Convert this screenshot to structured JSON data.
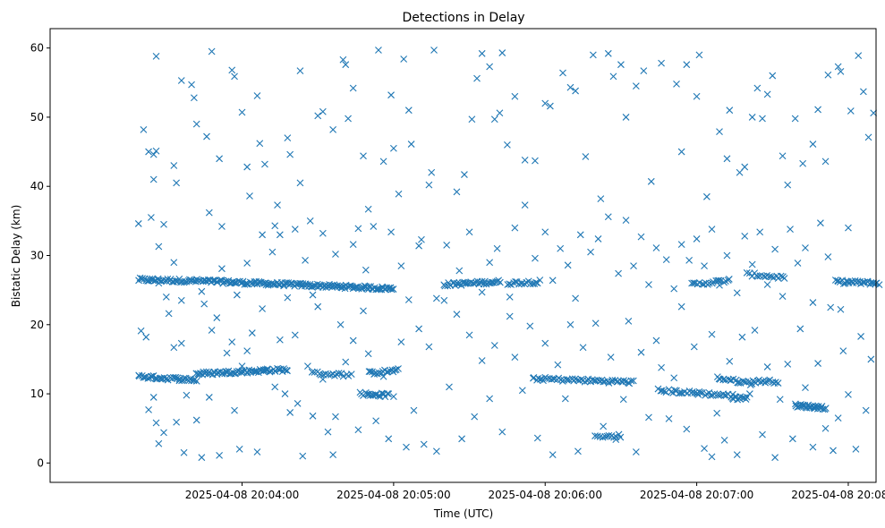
{
  "chart_data": {
    "type": "scatter",
    "title": "Detections in Delay",
    "xlabel": "Time (UTC)",
    "ylabel": "Bistatic Delay (km)",
    "marker": "x",
    "color": "#1f77b4",
    "x_unit": "seconds since 2025-04-08 20:03:00",
    "xlim": [
      -16,
      311
    ],
    "ylim": [
      -2.8,
      62.8
    ],
    "xticks": [
      {
        "value": 60,
        "label": "2025-04-08 20:04:00"
      },
      {
        "value": 120,
        "label": "2025-04-08 20:05:00"
      },
      {
        "value": 180,
        "label": "2025-04-08 20:06:00"
      },
      {
        "value": 240,
        "label": "2025-04-08 20:07:00"
      },
      {
        "value": 300,
        "label": "2025-04-08 20:08:00"
      }
    ],
    "yticks": [
      0,
      10,
      20,
      30,
      40,
      50,
      60
    ],
    "tracks": [
      {
        "name": "track-upper-1",
        "x_start": 19,
        "x_end": 45,
        "y_start": 26.5,
        "y_end": 26.3,
        "count": 46
      },
      {
        "name": "track-upper-2",
        "x_start": 45,
        "x_end": 120,
        "y_start": 26.3,
        "y_end": 25.2,
        "count": 150
      },
      {
        "name": "track-upper-3",
        "x_start": 140,
        "x_end": 162,
        "y_start": 25.8,
        "y_end": 26.2,
        "count": 40
      },
      {
        "name": "track-upper-4",
        "x_start": 165,
        "x_end": 178,
        "y_start": 26.0,
        "y_end": 26.2,
        "count": 18
      },
      {
        "name": "track-upper-5",
        "x_start": 238,
        "x_end": 253,
        "y_start": 25.8,
        "y_end": 26.4,
        "count": 20
      },
      {
        "name": "track-upper-6",
        "x_start": 260,
        "x_end": 275,
        "y_start": 27.3,
        "y_end": 26.8,
        "count": 18
      },
      {
        "name": "track-upper-7",
        "x_start": 295,
        "x_end": 312,
        "y_start": 26.2,
        "y_end": 26.0,
        "count": 30
      },
      {
        "name": "track-lower-1",
        "x_start": 19,
        "x_end": 42,
        "y_start": 12.5,
        "y_end": 12.0,
        "count": 40
      },
      {
        "name": "track-lower-2",
        "x_start": 42,
        "x_end": 78,
        "y_start": 12.9,
        "y_end": 13.5,
        "count": 70
      },
      {
        "name": "track-lower-3",
        "x_start": 88,
        "x_end": 103,
        "y_start": 13.0,
        "y_end": 12.7,
        "count": 18
      },
      {
        "name": "track-lower-4",
        "x_start": 110,
        "x_end": 122,
        "y_start": 13.0,
        "y_end": 13.4,
        "count": 18
      },
      {
        "name": "track-lower-5",
        "x_start": 175,
        "x_end": 215,
        "y_start": 12.2,
        "y_end": 11.7,
        "count": 55
      },
      {
        "name": "track-lower-6",
        "x_start": 225,
        "x_end": 240,
        "y_start": 10.5,
        "y_end": 10.1,
        "count": 20
      },
      {
        "name": "track-lower-7",
        "x_start": 240,
        "x_end": 255,
        "y_start": 10.1,
        "y_end": 9.7,
        "count": 20
      },
      {
        "name": "track-lower-8",
        "x_start": 248,
        "x_end": 262,
        "y_start": 12.3,
        "y_end": 11.5,
        "count": 20
      },
      {
        "name": "track-lower-9",
        "x_start": 262,
        "x_end": 272,
        "y_start": 11.8,
        "y_end": 11.8,
        "count": 15
      },
      {
        "name": "track-lower-10",
        "x_start": 279,
        "x_end": 291,
        "y_start": 8.3,
        "y_end": 8.0,
        "count": 30
      },
      {
        "name": "track-lower-11",
        "x_start": 107,
        "x_end": 118,
        "y_start": 10.0,
        "y_end": 9.8,
        "count": 20
      },
      {
        "name": "track-lower-12",
        "x_start": 254,
        "x_end": 260,
        "y_start": 9.4,
        "y_end": 9.3,
        "count": 10
      },
      {
        "name": "track-lower-13",
        "x_start": 200,
        "x_end": 210,
        "y_start": 3.9,
        "y_end": 3.9,
        "count": 12
      }
    ],
    "scatter_points": [
      [
        19,
        34.6
      ],
      [
        21,
        48.2
      ],
      [
        23,
        45.0
      ],
      [
        24,
        35.5
      ],
      [
        25,
        44.6
      ],
      [
        26,
        45.1
      ],
      [
        27,
        26.0
      ],
      [
        25,
        41.0
      ],
      [
        26,
        58.8
      ],
      [
        29,
        34.5
      ],
      [
        27,
        31.3
      ],
      [
        33,
        43.0
      ],
      [
        34,
        40.5
      ],
      [
        36,
        55.3
      ],
      [
        40,
        54.7
      ],
      [
        41,
        52.8
      ],
      [
        42,
        49.0
      ],
      [
        46,
        47.2
      ],
      [
        47,
        36.2
      ],
      [
        48,
        59.5
      ],
      [
        51,
        44.0
      ],
      [
        52,
        34.2
      ],
      [
        56,
        56.8
      ],
      [
        57,
        55.9
      ],
      [
        60,
        50.7
      ],
      [
        62,
        42.8
      ],
      [
        63,
        38.6
      ],
      [
        66,
        53.1
      ],
      [
        67,
        46.2
      ],
      [
        69,
        43.2
      ],
      [
        73,
        34.3
      ],
      [
        74,
        37.3
      ],
      [
        78,
        47.0
      ],
      [
        79,
        44.6
      ],
      [
        81,
        33.8
      ],
      [
        83,
        56.7
      ],
      [
        83,
        40.5
      ],
      [
        87,
        35.0
      ],
      [
        90,
        50.2
      ],
      [
        92,
        50.8
      ],
      [
        96,
        48.2
      ],
      [
        100,
        58.3
      ],
      [
        101,
        57.6
      ],
      [
        102,
        49.8
      ],
      [
        104,
        54.2
      ],
      [
        106,
        33.9
      ],
      [
        108,
        44.4
      ],
      [
        110,
        36.7
      ],
      [
        114,
        59.7
      ],
      [
        116,
        43.6
      ],
      [
        119,
        53.2
      ],
      [
        120,
        45.5
      ],
      [
        122,
        38.9
      ],
      [
        124,
        58.4
      ],
      [
        126,
        51.0
      ],
      [
        127,
        46.1
      ],
      [
        130,
        31.4
      ],
      [
        134,
        40.2
      ],
      [
        136,
        59.7
      ],
      [
        135,
        42.0
      ],
      [
        145,
        39.2
      ],
      [
        148,
        41.7
      ],
      [
        151,
        49.7
      ],
      [
        153,
        55.6
      ],
      [
        155,
        59.2
      ],
      [
        158,
        57.3
      ],
      [
        160,
        49.7
      ],
      [
        163,
        59.3
      ],
      [
        162,
        50.6
      ],
      [
        165,
        46.0
      ],
      [
        168,
        53.0
      ],
      [
        172,
        43.8
      ],
      [
        176,
        43.7
      ],
      [
        180,
        52.0
      ],
      [
        182,
        51.6
      ],
      [
        187,
        56.4
      ],
      [
        190,
        54.3
      ],
      [
        192,
        53.8
      ],
      [
        196,
        44.3
      ],
      [
        199,
        59.0
      ],
      [
        202,
        38.2
      ],
      [
        205,
        59.2
      ],
      [
        207,
        55.9
      ],
      [
        210,
        57.6
      ],
      [
        212,
        50.0
      ],
      [
        216,
        54.5
      ],
      [
        219,
        56.7
      ],
      [
        222,
        40.7
      ],
      [
        226,
        57.8
      ],
      [
        232,
        54.8
      ],
      [
        234,
        45.0
      ],
      [
        236,
        57.6
      ],
      [
        240,
        53.0
      ],
      [
        241,
        59.0
      ],
      [
        244,
        38.5
      ],
      [
        249,
        47.9
      ],
      [
        253,
        51.0
      ],
      [
        252,
        44.0
      ],
      [
        257,
        42.0
      ],
      [
        259,
        42.8
      ],
      [
        262,
        50.0
      ],
      [
        264,
        54.2
      ],
      [
        266,
        49.8
      ],
      [
        268,
        53.3
      ],
      [
        270,
        56.0
      ],
      [
        274,
        44.4
      ],
      [
        276,
        40.2
      ],
      [
        279,
        49.8
      ],
      [
        282,
        43.3
      ],
      [
        286,
        46.1
      ],
      [
        288,
        51.1
      ],
      [
        291,
        43.6
      ],
      [
        292,
        56.1
      ],
      [
        296,
        57.3
      ],
      [
        297,
        56.6
      ],
      [
        301,
        50.9
      ],
      [
        304,
        58.9
      ],
      [
        306,
        53.7
      ],
      [
        308,
        47.1
      ],
      [
        310,
        50.6
      ],
      [
        20,
        19.1
      ],
      [
        22,
        18.2
      ],
      [
        23,
        7.7
      ],
      [
        25,
        9.5
      ],
      [
        26,
        5.8
      ],
      [
        27,
        2.8
      ],
      [
        29,
        4.4
      ],
      [
        31,
        21.6
      ],
      [
        33,
        16.7
      ],
      [
        34,
        5.9
      ],
      [
        36,
        17.3
      ],
      [
        37,
        1.5
      ],
      [
        38,
        9.8
      ],
      [
        41,
        12.0
      ],
      [
        42,
        6.2
      ],
      [
        44,
        0.8
      ],
      [
        45,
        23.0
      ],
      [
        47,
        9.5
      ],
      [
        48,
        19.2
      ],
      [
        50,
        21.0
      ],
      [
        51,
        1.1
      ],
      [
        54,
        15.9
      ],
      [
        56,
        17.5
      ],
      [
        57,
        7.6
      ],
      [
        59,
        2.0
      ],
      [
        60,
        14.0
      ],
      [
        62,
        16.2
      ],
      [
        64,
        18.8
      ],
      [
        66,
        1.6
      ],
      [
        68,
        22.3
      ],
      [
        70,
        13.6
      ],
      [
        73,
        11.0
      ],
      [
        75,
        17.8
      ],
      [
        77,
        10.0
      ],
      [
        79,
        7.3
      ],
      [
        81,
        18.5
      ],
      [
        82,
        8.6
      ],
      [
        84,
        1.0
      ],
      [
        86,
        14.0
      ],
      [
        88,
        6.8
      ],
      [
        90,
        22.6
      ],
      [
        92,
        12.1
      ],
      [
        94,
        4.5
      ],
      [
        96,
        1.2
      ],
      [
        97,
        6.7
      ],
      [
        99,
        20.0
      ],
      [
        101,
        14.6
      ],
      [
        104,
        17.7
      ],
      [
        106,
        4.8
      ],
      [
        108,
        22.0
      ],
      [
        110,
        15.8
      ],
      [
        113,
        6.1
      ],
      [
        116,
        12.5
      ],
      [
        118,
        3.5
      ],
      [
        120,
        9.6
      ],
      [
        123,
        17.5
      ],
      [
        125,
        2.3
      ],
      [
        128,
        7.6
      ],
      [
        130,
        19.4
      ],
      [
        132,
        2.7
      ],
      [
        134,
        16.8
      ],
      [
        137,
        1.7
      ],
      [
        140,
        23.5
      ],
      [
        142,
        11.0
      ],
      [
        145,
        21.5
      ],
      [
        147,
        3.5
      ],
      [
        150,
        18.5
      ],
      [
        152,
        6.7
      ],
      [
        155,
        14.8
      ],
      [
        158,
        9.3
      ],
      [
        160,
        17.0
      ],
      [
        163,
        4.5
      ],
      [
        166,
        21.2
      ],
      [
        168,
        15.3
      ],
      [
        171,
        10.5
      ],
      [
        174,
        19.8
      ],
      [
        177,
        3.6
      ],
      [
        180,
        17.3
      ],
      [
        183,
        1.2
      ],
      [
        185,
        14.2
      ],
      [
        188,
        9.3
      ],
      [
        190,
        20.0
      ],
      [
        193,
        1.7
      ],
      [
        195,
        16.7
      ],
      [
        198,
        11.8
      ],
      [
        200,
        20.2
      ],
      [
        203,
        5.3
      ],
      [
        206,
        15.3
      ],
      [
        208,
        3.4
      ],
      [
        211,
        9.2
      ],
      [
        213,
        20.5
      ],
      [
        216,
        1.6
      ],
      [
        218,
        16.0
      ],
      [
        221,
        6.6
      ],
      [
        224,
        17.7
      ],
      [
        226,
        13.8
      ],
      [
        229,
        6.4
      ],
      [
        231,
        12.3
      ],
      [
        234,
        22.6
      ],
      [
        236,
        4.9
      ],
      [
        239,
        16.8
      ],
      [
        241,
        10.3
      ],
      [
        243,
        2.1
      ],
      [
        246,
        18.6
      ],
      [
        248,
        7.2
      ],
      [
        251,
        3.3
      ],
      [
        253,
        14.7
      ],
      [
        256,
        1.2
      ],
      [
        258,
        18.2
      ],
      [
        261,
        10.0
      ],
      [
        263,
        19.2
      ],
      [
        266,
        4.1
      ],
      [
        268,
        13.9
      ],
      [
        271,
        0.8
      ],
      [
        273,
        9.2
      ],
      [
        276,
        14.3
      ],
      [
        278,
        3.5
      ],
      [
        281,
        19.4
      ],
      [
        283,
        10.9
      ],
      [
        286,
        2.3
      ],
      [
        288,
        14.4
      ],
      [
        291,
        5.0
      ],
      [
        293,
        22.5
      ],
      [
        296,
        6.5
      ],
      [
        298,
        16.2
      ],
      [
        300,
        9.9
      ],
      [
        303,
        2.0
      ],
      [
        305,
        18.3
      ],
      [
        307,
        7.6
      ],
      [
        309,
        15.0
      ],
      [
        294,
        1.8
      ],
      [
        246,
        0.9
      ],
      [
        30,
        24.0
      ],
      [
        33,
        29.0
      ],
      [
        36,
        23.5
      ],
      [
        44,
        24.8
      ],
      [
        52,
        28.1
      ],
      [
        58,
        24.3
      ],
      [
        62,
        28.9
      ],
      [
        68,
        33.0
      ],
      [
        72,
        30.5
      ],
      [
        75,
        33.0
      ],
      [
        78,
        23.9
      ],
      [
        85,
        29.3
      ],
      [
        88,
        24.3
      ],
      [
        92,
        33.2
      ],
      [
        97,
        30.2
      ],
      [
        104,
        31.6
      ],
      [
        109,
        27.9
      ],
      [
        112,
        34.2
      ],
      [
        119,
        33.4
      ],
      [
        123,
        28.5
      ],
      [
        126,
        23.6
      ],
      [
        131,
        32.3
      ],
      [
        137,
        23.8
      ],
      [
        141,
        31.5
      ],
      [
        146,
        27.8
      ],
      [
        150,
        33.4
      ],
      [
        155,
        24.7
      ],
      [
        158,
        29.0
      ],
      [
        161,
        31.0
      ],
      [
        166,
        24.0
      ],
      [
        168,
        34.0
      ],
      [
        172,
        37.3
      ],
      [
        176,
        29.6
      ],
      [
        180,
        33.4
      ],
      [
        183,
        26.4
      ],
      [
        186,
        31.0
      ],
      [
        189,
        28.6
      ],
      [
        192,
        23.8
      ],
      [
        194,
        33.0
      ],
      [
        198,
        30.5
      ],
      [
        201,
        32.4
      ],
      [
        205,
        35.6
      ],
      [
        209,
        27.4
      ],
      [
        212,
        35.1
      ],
      [
        215,
        28.5
      ],
      [
        218,
        32.7
      ],
      [
        221,
        25.8
      ],
      [
        224,
        31.1
      ],
      [
        228,
        29.4
      ],
      [
        231,
        25.2
      ],
      [
        234,
        31.6
      ],
      [
        237,
        29.3
      ],
      [
        240,
        32.4
      ],
      [
        243,
        28.5
      ],
      [
        246,
        33.8
      ],
      [
        249,
        25.7
      ],
      [
        252,
        30.0
      ],
      [
        256,
        24.6
      ],
      [
        259,
        32.8
      ],
      [
        262,
        28.7
      ],
      [
        265,
        33.4
      ],
      [
        268,
        25.8
      ],
      [
        271,
        30.9
      ],
      [
        274,
        24.1
      ],
      [
        277,
        33.8
      ],
      [
        280,
        28.9
      ],
      [
        283,
        31.1
      ],
      [
        286,
        23.2
      ],
      [
        289,
        34.7
      ],
      [
        292,
        29.8
      ],
      [
        297,
        22.2
      ],
      [
        300,
        34.0
      ]
    ]
  }
}
